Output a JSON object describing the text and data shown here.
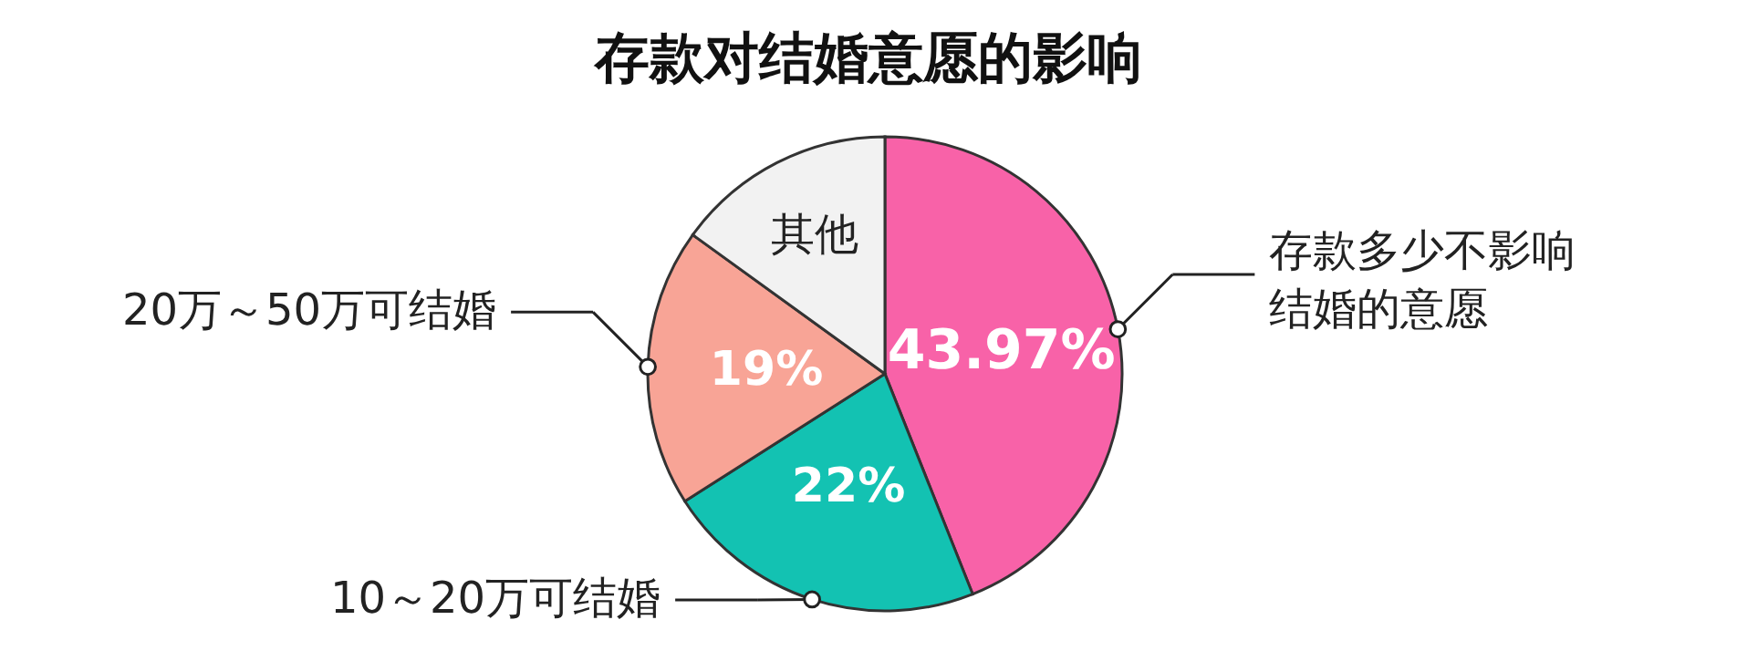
{
  "chart_data": {
    "type": "pie",
    "title": "存款对结婚意愿的影响",
    "categories": [
      "存款多少不影响结婚的意愿",
      "10～20万可结婚",
      "20万～50万可结婚",
      "其他"
    ],
    "values": [
      43.97,
      22,
      19,
      15.03
    ],
    "value_labels": [
      "43.97%",
      "22%",
      "19%",
      null
    ],
    "colors": [
      "#f862a8",
      "#13c2b2",
      "#f8a496",
      "#f2f2f2"
    ],
    "legend": false
  }
}
